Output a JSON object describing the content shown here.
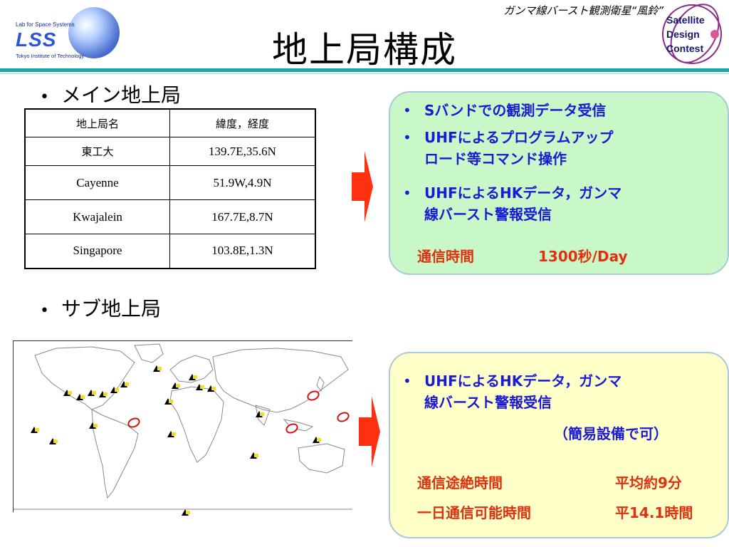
{
  "header": {
    "subtitle": "ガンマ線バースト観測衛星“風鈴”",
    "title": "地上局構成"
  },
  "lab_logo": {
    "line1": "Lab for Space Systems",
    "mark": "LSS",
    "line2": "Tokyo Institute of Technology"
  },
  "contest_logo": {
    "word1": "Satellite",
    "word2": "Design",
    "word3": "Contest"
  },
  "main_section": {
    "bullet": "メイン地上局",
    "table": {
      "headers": [
        "地上局名",
        "緯度，経度"
      ],
      "rows": [
        [
          "東工大",
          "139.7E,35.6N"
        ],
        [
          "Cayenne",
          "51.9W,4.9N"
        ],
        [
          "Kwajalein",
          "167.7E,8.7N"
        ],
        [
          "Singapore",
          "103.8E,1.3N"
        ]
      ]
    }
  },
  "sub_section": {
    "bullet": "サブ地上局"
  },
  "box1": {
    "items": [
      {
        "line1": "Sバンドでの観測データ受信",
        "line2": ""
      },
      {
        "line1": "UHFによるプログラムアップ",
        "line2": "ロード等コマンド操作"
      },
      {
        "line1": "UHFによるHKデータ，ガンマ",
        "line2": "線バースト警報受信"
      }
    ],
    "comm_label": "通信時間",
    "comm_value": "1300秒/Day"
  },
  "box2": {
    "item_line1": "UHFによるHKデータ，ガンマ",
    "item_line2": "線バースト警報受信",
    "note": "（簡易設備で可）",
    "outage_label": "通信途絶時間",
    "outage_value": "平均約9分",
    "daily_label": "一日通信可能時間",
    "daily_value": "平14.1時間"
  },
  "colors": {
    "accent_rule": "#1aa6a6",
    "box1_bg": "#c8f8c8",
    "box2_bg": "#ffffc8",
    "blue_text": "#1a1ad6",
    "red_text": "#e03010",
    "arrow": "#ff3010"
  }
}
